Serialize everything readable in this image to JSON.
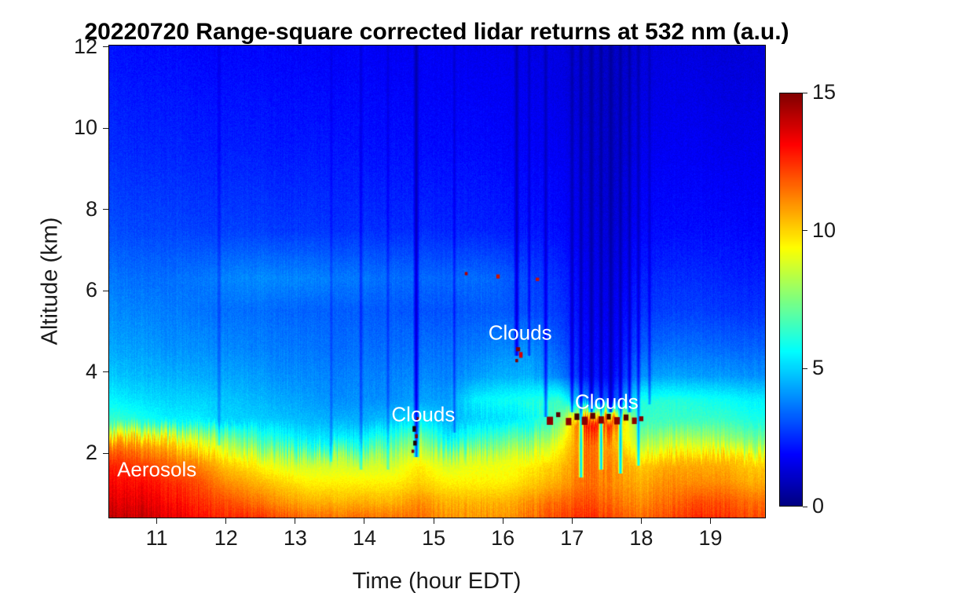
{
  "styles": {
    "background": "#ffffff",
    "text_color": "#1a1a1a",
    "title_color": "#000000",
    "frame_color": "#000000",
    "annotation_color": "#ffffff"
  },
  "chart_data": {
    "type": "heatmap",
    "title": "20220720  Range-square corrected lidar returns at 532 nm (a.u.)",
    "xlabel": "Time (hour EDT)",
    "ylabel": "Altitude (km)",
    "x_range": [
      10.3,
      19.8
    ],
    "y_range": [
      0.4,
      12.05
    ],
    "x_ticks": [
      11,
      12,
      13,
      14,
      15,
      16,
      17,
      18,
      19
    ],
    "y_ticks": [
      2,
      4,
      6,
      8,
      10,
      12
    ],
    "colormap": "jet",
    "colorbar": {
      "min": 0,
      "max": 15,
      "ticks": [
        0,
        5,
        10,
        15
      ]
    },
    "grid": {
      "x": [
        10.4,
        10.8,
        11.2,
        11.6,
        12.0,
        12.4,
        12.8,
        13.2,
        13.6,
        14.0,
        14.4,
        14.8,
        15.2,
        15.6,
        16.0,
        16.4,
        16.8,
        17.2,
        17.6,
        18.0,
        18.4,
        18.8,
        19.2,
        19.6
      ],
      "y": [
        0.4,
        0.8,
        1.3,
        1.8,
        2.3,
        2.8,
        3.3,
        3.9,
        4.6,
        5.5,
        6.3,
        7.5,
        9.5,
        12.0
      ],
      "values": [
        [
          14,
          14,
          13.5,
          13,
          12.5,
          12.5,
          12,
          11.5,
          11.5,
          11.5,
          11.5,
          11.5,
          11,
          11,
          11,
          11.5,
          12,
          12.5,
          12,
          11.5,
          12,
          12.5,
          12.5,
          12
        ],
        [
          13.5,
          13.5,
          13,
          12.5,
          12,
          11.5,
          11,
          10.5,
          10.5,
          10.5,
          10.5,
          11,
          10.5,
          10.5,
          10.5,
          11,
          11.5,
          12,
          11.5,
          11,
          11.5,
          12,
          12,
          11.5
        ],
        [
          13,
          13,
          12.5,
          12,
          11,
          10.5,
          10,
          9.5,
          9.5,
          9.5,
          9.5,
          10,
          9.5,
          9.5,
          9.5,
          10,
          10.5,
          11.5,
          11,
          10.5,
          11,
          11,
          11,
          10.5
        ],
        [
          12.5,
          12,
          11.5,
          11,
          10,
          9.5,
          8.5,
          8.5,
          8.5,
          8.5,
          8.5,
          9.5,
          8.5,
          9,
          9,
          9.5,
          10,
          11.5,
          11,
          10,
          10.5,
          10.5,
          10.5,
          10
        ],
        [
          11,
          10.5,
          10,
          9,
          8,
          7,
          6,
          5.5,
          5.5,
          6,
          6.5,
          8,
          5.5,
          6.5,
          7,
          7.5,
          9,
          11.5,
          10.5,
          8,
          8.5,
          8.5,
          8,
          7.5
        ],
        [
          6.5,
          6,
          5.5,
          5.5,
          5,
          5,
          4.8,
          4.6,
          4.5,
          4.5,
          4.8,
          5.5,
          4.5,
          5,
          5.2,
          5.5,
          7,
          13,
          12,
          6.5,
          6.5,
          6.5,
          6.5,
          6
        ],
        [
          5.5,
          5.2,
          5,
          5,
          4.8,
          4.6,
          4.4,
          4.2,
          4,
          4,
          4,
          4.3,
          4.2,
          5.5,
          5.8,
          6,
          6.5,
          4,
          3,
          6,
          6.2,
          6,
          5.8,
          5.5
        ],
        [
          4.8,
          4.6,
          4.5,
          4.4,
          4.3,
          4.2,
          4,
          3.9,
          3.8,
          3.8,
          3.8,
          3.9,
          3.8,
          4.2,
          4.5,
          4.5,
          3.8,
          2.2,
          2,
          4,
          4.3,
          4.2,
          4.2,
          4
        ],
        [
          4.3,
          4.2,
          4,
          4,
          3.9,
          3.8,
          3.7,
          3.6,
          3.5,
          3.5,
          3.5,
          3.5,
          3.5,
          3.7,
          3.9,
          4,
          3.2,
          2,
          1.8,
          3.2,
          3.5,
          3.5,
          3.4,
          3.3
        ],
        [
          3.9,
          3.8,
          3.7,
          3.6,
          3.5,
          3.5,
          3.4,
          3.3,
          3.3,
          3.2,
          3.2,
          3.1,
          3.1,
          3.2,
          3.2,
          3,
          2.7,
          1.8,
          1.6,
          2.6,
          2.8,
          2.8,
          2.7,
          2.6
        ],
        [
          3.6,
          3.5,
          3.5,
          3.6,
          3.8,
          3.9,
          3.9,
          3.8,
          3.7,
          3.6,
          3.5,
          3.4,
          3.4,
          3.5,
          3.3,
          2.9,
          2.5,
          1.7,
          1.5,
          2.3,
          2.5,
          2.5,
          2.4,
          2.3
        ],
        [
          3,
          2.9,
          2.9,
          2.8,
          2.8,
          2.8,
          2.7,
          2.7,
          2.6,
          2.6,
          2.5,
          2.5,
          2.4,
          2.4,
          2.3,
          2.2,
          2,
          1.5,
          1.3,
          1.9,
          2,
          2,
          2,
          1.9
        ],
        [
          2.5,
          2.4,
          2.4,
          2.3,
          2.3,
          2.3,
          2.2,
          2.2,
          2.2,
          2.1,
          2.1,
          2,
          2,
          2,
          1.9,
          1.8,
          1.7,
          1.3,
          1.1,
          1.6,
          1.7,
          1.7,
          1.6,
          1.6
        ],
        [
          2.1,
          2,
          2,
          1.9,
          1.9,
          1.9,
          1.9,
          1.8,
          1.8,
          1.8,
          1.7,
          1.7,
          1.7,
          1.6,
          1.6,
          1.5,
          1.4,
          1.1,
          1,
          1.3,
          1.4,
          1.4,
          1.3,
          1.3
        ]
      ]
    },
    "annotations": [
      {
        "text": "Aerosols",
        "x": 11.0,
        "y": 1.6,
        "color": "#ffffff"
      },
      {
        "text": "Clouds",
        "x": 14.85,
        "y": 2.95,
        "color": "#ffffff"
      },
      {
        "text": "Clouds",
        "x": 16.25,
        "y": 4.95,
        "color": "#ffffff"
      },
      {
        "text": "Clouds",
        "x": 17.5,
        "y": 3.25,
        "color": "#ffffff"
      }
    ],
    "features": {
      "attenuation_streaks": [
        {
          "x": 11.9,
          "w": 0.035,
          "y0": 2.2,
          "s": 0.22
        },
        {
          "x": 13.52,
          "w": 0.03,
          "y0": 1.8,
          "s": 0.22
        },
        {
          "x": 13.95,
          "w": 0.035,
          "y0": 1.6,
          "s": 0.28
        },
        {
          "x": 14.34,
          "w": 0.03,
          "y0": 1.6,
          "s": 0.25
        },
        {
          "x": 14.75,
          "w": 0.05,
          "y0": 1.9,
          "s": 0.68
        },
        {
          "x": 15.3,
          "w": 0.03,
          "y0": 2.5,
          "s": 0.3
        },
        {
          "x": 16.2,
          "w": 0.045,
          "y0": 4.4,
          "s": 0.62
        },
        {
          "x": 16.38,
          "w": 0.03,
          "y0": 4.4,
          "s": 0.4
        },
        {
          "x": 16.62,
          "w": 0.04,
          "y0": 2.9,
          "s": 0.5
        },
        {
          "x": 17.0,
          "w": 0.04,
          "y0": 3.0,
          "s": 0.55
        },
        {
          "x": 17.13,
          "w": 0.04,
          "y0": 1.4,
          "s": 0.6
        },
        {
          "x": 17.28,
          "w": 0.05,
          "y0": 3.0,
          "s": 0.65
        },
        {
          "x": 17.42,
          "w": 0.04,
          "y0": 1.6,
          "s": 0.6
        },
        {
          "x": 17.56,
          "w": 0.05,
          "y0": 3.0,
          "s": 0.65
        },
        {
          "x": 17.7,
          "w": 0.04,
          "y0": 1.5,
          "s": 0.6
        },
        {
          "x": 17.83,
          "w": 0.04,
          "y0": 3.0,
          "s": 0.55
        },
        {
          "x": 17.96,
          "w": 0.035,
          "y0": 1.7,
          "s": 0.5
        },
        {
          "x": 18.12,
          "w": 0.03,
          "y0": 3.2,
          "s": 0.38
        }
      ],
      "cloud_marks": [
        {
          "x": 14.72,
          "y": 2.6,
          "w": 0.05,
          "h": 0.14,
          "color": "#1a0000"
        },
        {
          "x": 14.75,
          "y": 2.42,
          "w": 0.04,
          "h": 0.1,
          "color": "#7f0000"
        },
        {
          "x": 14.73,
          "y": 2.25,
          "w": 0.05,
          "h": 0.12,
          "color": "#1a0000"
        },
        {
          "x": 14.77,
          "y": 2.85,
          "w": 0.03,
          "h": 0.08,
          "color": "#7f0000"
        },
        {
          "x": 14.7,
          "y": 2.05,
          "w": 0.04,
          "h": 0.08,
          "color": "#7f0000"
        },
        {
          "x": 15.47,
          "y": 6.42,
          "w": 0.04,
          "h": 0.08,
          "color": "#b00000"
        },
        {
          "x": 15.93,
          "y": 6.35,
          "w": 0.05,
          "h": 0.1,
          "color": "#cc1100"
        },
        {
          "x": 16.5,
          "y": 6.28,
          "w": 0.05,
          "h": 0.08,
          "color": "#cc1100"
        },
        {
          "x": 16.22,
          "y": 4.56,
          "w": 0.06,
          "h": 0.1,
          "color": "#7f0000"
        },
        {
          "x": 16.26,
          "y": 4.42,
          "w": 0.05,
          "h": 0.14,
          "color": "#d40000"
        },
        {
          "x": 16.2,
          "y": 4.28,
          "w": 0.04,
          "h": 0.08,
          "color": "#7f0000"
        },
        {
          "x": 16.68,
          "y": 2.8,
          "w": 0.09,
          "h": 0.2,
          "color": "#8b0000"
        },
        {
          "x": 16.8,
          "y": 2.95,
          "w": 0.06,
          "h": 0.12,
          "color": "#5a0000"
        },
        {
          "x": 16.95,
          "y": 2.78,
          "w": 0.08,
          "h": 0.18,
          "color": "#8b0000"
        },
        {
          "x": 17.07,
          "y": 2.9,
          "w": 0.07,
          "h": 0.16,
          "color": "#420000"
        },
        {
          "x": 17.18,
          "y": 2.8,
          "w": 0.08,
          "h": 0.2,
          "color": "#8b0000"
        },
        {
          "x": 17.3,
          "y": 2.92,
          "w": 0.07,
          "h": 0.15,
          "color": "#5a0000"
        },
        {
          "x": 17.42,
          "y": 2.82,
          "w": 0.08,
          "h": 0.18,
          "color": "#8b0000"
        },
        {
          "x": 17.53,
          "y": 2.9,
          "w": 0.06,
          "h": 0.14,
          "color": "#420000"
        },
        {
          "x": 17.65,
          "y": 2.8,
          "w": 0.08,
          "h": 0.18,
          "color": "#8b0000"
        },
        {
          "x": 17.78,
          "y": 2.88,
          "w": 0.07,
          "h": 0.15,
          "color": "#5a0000"
        },
        {
          "x": 17.9,
          "y": 2.8,
          "w": 0.07,
          "h": 0.16,
          "color": "#8b0000"
        },
        {
          "x": 18.0,
          "y": 2.85,
          "w": 0.06,
          "h": 0.12,
          "color": "#7f0000"
        }
      ]
    }
  }
}
